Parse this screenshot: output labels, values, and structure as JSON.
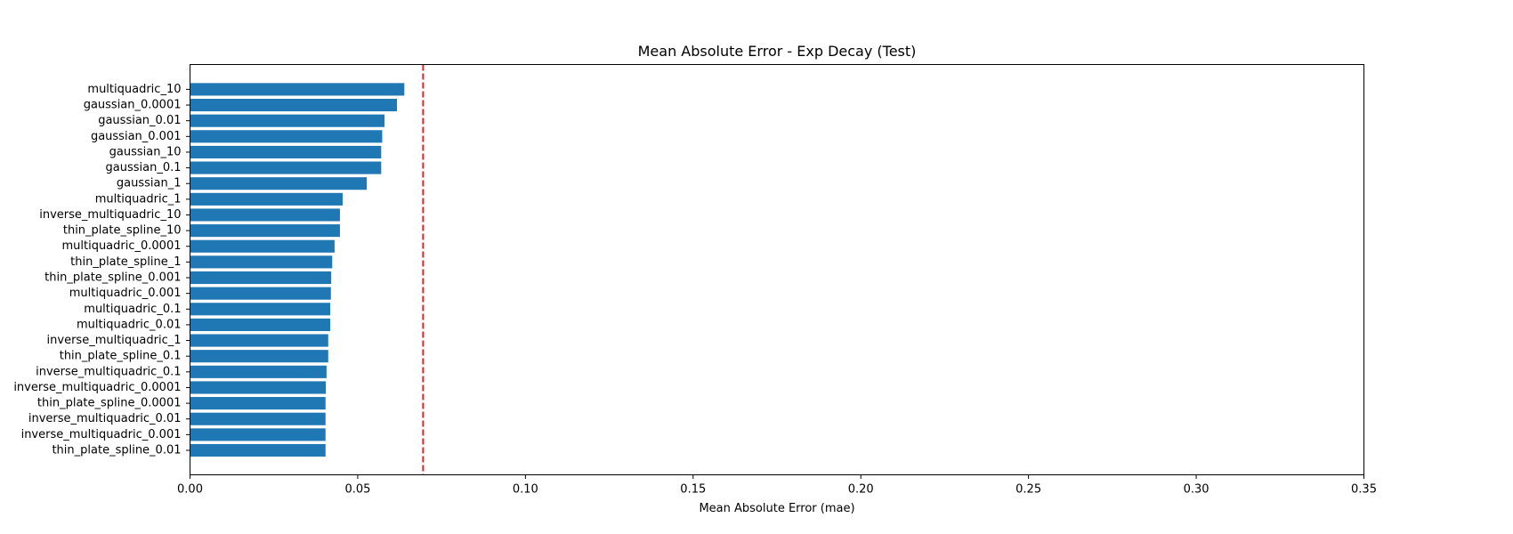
{
  "chart_data": {
    "type": "bar",
    "orientation": "horizontal",
    "title": "Mean Absolute Error - Exp Decay (Test)",
    "xlabel": "Mean Absolute Error (mae)",
    "ylabel": "",
    "xlim": [
      0,
      0.35
    ],
    "xticks": [
      "0.00",
      "0.05",
      "0.10",
      "0.15",
      "0.20",
      "0.25",
      "0.30",
      "0.35"
    ],
    "grid": false,
    "bar_color": "#1f77b4",
    "reference_line": {
      "value": 0.0695,
      "color": "#d62728",
      "style": "dashed"
    },
    "categories": [
      "multiquadric_10",
      "gaussian_0.0001",
      "gaussian_0.01",
      "gaussian_0.001",
      "gaussian_10",
      "gaussian_0.1",
      "gaussian_1",
      "multiquadric_1",
      "inverse_multiquadric_10",
      "thin_plate_spline_10",
      "multiquadric_0.0001",
      "thin_plate_spline_1",
      "thin_plate_spline_0.001",
      "multiquadric_0.001",
      "multiquadric_0.1",
      "multiquadric_0.01",
      "inverse_multiquadric_1",
      "thin_plate_spline_0.1",
      "inverse_multiquadric_0.1",
      "inverse_multiquadric_0.0001",
      "thin_plate_spline_0.0001",
      "inverse_multiquadric_0.01",
      "inverse_multiquadric_0.001",
      "thin_plate_spline_0.01"
    ],
    "values": [
      0.0639,
      0.0617,
      0.058,
      0.0573,
      0.057,
      0.057,
      0.0527,
      0.0455,
      0.0447,
      0.0447,
      0.0431,
      0.0424,
      0.0421,
      0.042,
      0.0418,
      0.0418,
      0.0412,
      0.0412,
      0.0407,
      0.0405,
      0.0404,
      0.0404,
      0.0404,
      0.0404
    ]
  }
}
